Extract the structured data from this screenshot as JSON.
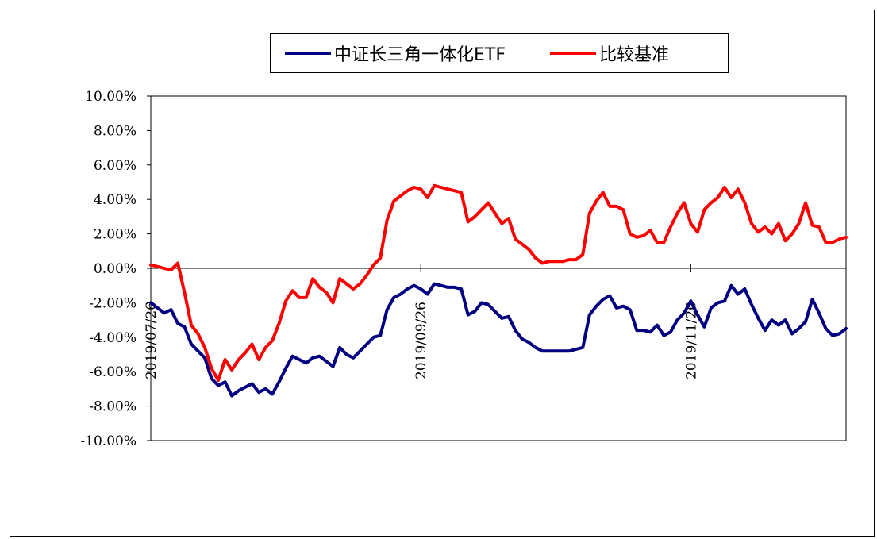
{
  "chart_data": {
    "type": "line",
    "title": "",
    "xlabel": "",
    "ylabel": "",
    "ylim": [
      -10,
      10
    ],
    "y_ticks": [
      10,
      8,
      6,
      4,
      2,
      0,
      -2,
      -4,
      -6,
      -8,
      -10
    ],
    "y_tick_labels": [
      "10.00%",
      "8.00%",
      "6.00%",
      "4.00%",
      "2.00%",
      "0.00%",
      "-2.00%",
      "-4.00%",
      "-6.00%",
      "-8.00%",
      "-10.00%"
    ],
    "x_tick_labels": [
      "2019/07/26",
      "2019/09/26",
      "2019/11/26"
    ],
    "x_tick_index": [
      0,
      40,
      80
    ],
    "n_points": 104,
    "grid": false,
    "legend_position": "top",
    "series": [
      {
        "name": "中证长三角一体化ETF",
        "color": "#000080",
        "values": [
          -2.0,
          -2.3,
          -2.6,
          -2.4,
          -3.2,
          -3.4,
          -4.4,
          -4.8,
          -5.2,
          -6.4,
          -6.8,
          -6.6,
          -7.4,
          -7.1,
          -6.9,
          -6.7,
          -7.2,
          -7.0,
          -7.3,
          -6.6,
          -5.8,
          -5.1,
          -5.3,
          -5.5,
          -5.2,
          -5.1,
          -5.4,
          -5.7,
          -4.6,
          -5.0,
          -5.2,
          -4.8,
          -4.4,
          -4.0,
          -3.9,
          -2.4,
          -1.7,
          -1.5,
          -1.2,
          -1.0,
          -1.2,
          -1.5,
          -0.9,
          -1.0,
          -1.1,
          -1.1,
          -1.2,
          -2.7,
          -2.5,
          -2.0,
          -2.1,
          -2.5,
          -2.9,
          -2.8,
          -3.6,
          -4.1,
          -4.3,
          -4.6,
          -4.8,
          -4.8,
          -4.8,
          -4.8,
          -4.8,
          -4.7,
          -4.6,
          -2.7,
          -2.2,
          -1.8,
          -1.6,
          -2.3,
          -2.2,
          -2.4,
          -3.6,
          -3.6,
          -3.7,
          -3.3,
          -3.9,
          -3.7,
          -3.0,
          -2.6,
          -1.9,
          -2.7,
          -3.4,
          -2.3,
          -2.0,
          -1.9,
          -1.0,
          -1.5,
          -1.2,
          -2.1,
          -2.9,
          -3.6,
          -3.0,
          -3.3,
          -3.0,
          -3.8,
          -3.5,
          -3.1,
          -1.8,
          -2.6,
          -3.5,
          -3.9,
          -3.8,
          -3.5
        ]
      },
      {
        "name": "比较基准",
        "color": "#ff0000",
        "values": [
          0.2,
          0.1,
          0.0,
          -0.1,
          0.3,
          -1.4,
          -3.3,
          -3.8,
          -4.6,
          -5.8,
          -6.5,
          -5.3,
          -5.9,
          -5.3,
          -4.9,
          -4.4,
          -5.3,
          -4.6,
          -4.2,
          -3.2,
          -1.9,
          -1.3,
          -1.7,
          -1.7,
          -0.6,
          -1.1,
          -1.4,
          -2.0,
          -0.6,
          -0.9,
          -1.2,
          -0.9,
          -0.4,
          0.2,
          0.6,
          2.8,
          3.9,
          4.2,
          4.5,
          4.7,
          4.6,
          4.1,
          4.8,
          4.7,
          4.6,
          4.5,
          4.4,
          2.7,
          3.0,
          3.4,
          3.8,
          3.2,
          2.6,
          2.9,
          1.7,
          1.4,
          1.1,
          0.6,
          0.3,
          0.4,
          0.4,
          0.4,
          0.5,
          0.5,
          0.8,
          3.2,
          3.9,
          4.4,
          3.6,
          3.6,
          3.4,
          2.0,
          1.8,
          1.9,
          2.2,
          1.5,
          1.5,
          2.4,
          3.2,
          3.8,
          2.6,
          2.1,
          3.4,
          3.8,
          4.1,
          4.7,
          4.1,
          4.6,
          3.8,
          2.6,
          2.1,
          2.4,
          2.0,
          2.6,
          1.6,
          2.0,
          2.6,
          3.8,
          2.5,
          2.4,
          1.5,
          1.5,
          1.7,
          1.8
        ]
      }
    ]
  }
}
